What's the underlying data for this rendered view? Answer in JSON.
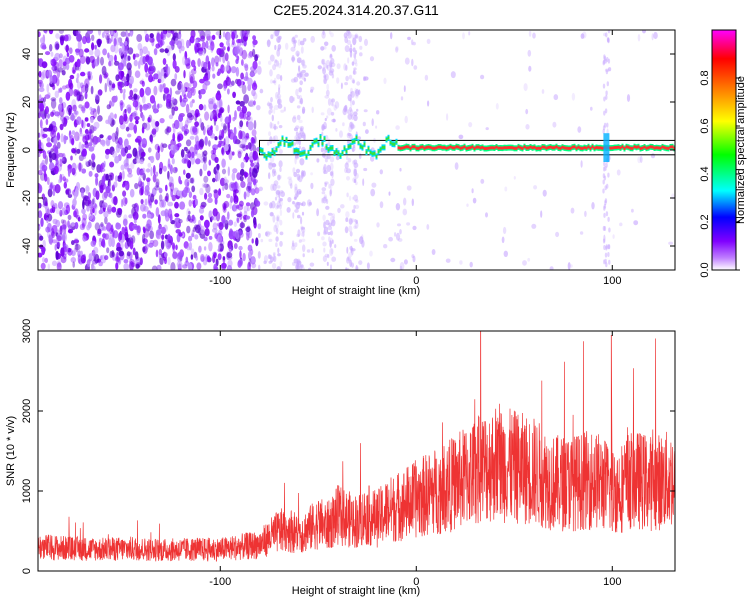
{
  "title": "C2E5.2024.314.20.37.G11",
  "chart_data": [
    {
      "type": "heatmap",
      "xlabel": "Height of straight line (km)",
      "ylabel": "Frequency (Hz)",
      "xlim": [
        -193,
        132
      ],
      "ylim": [
        -50,
        50
      ],
      "xticks": [
        -100,
        0,
        100
      ],
      "yticks": [
        40,
        20,
        0,
        -20,
        -40
      ],
      "grid": false,
      "colorbar": {
        "label": "Normalized spectral amplitude",
        "range": [
          0,
          1
        ],
        "ticks": [
          "0.0",
          "0.2",
          "0.4",
          "0.6",
          "0.8"
        ],
        "colors": [
          "#ffffff",
          "#8000ff",
          "#0000ff",
          "#00ffff",
          "#00ff00",
          "#ffff00",
          "#ff8000",
          "#ff0000",
          "#ff00ff"
        ]
      },
      "signal": {
        "description": "narrow band centered near 0 Hz",
        "x_start": -80,
        "x_end": 132,
        "freq_center": 1,
        "freq_halfwidth": 3
      },
      "noise_region": {
        "x_start": -193,
        "x_end": -80
      },
      "artifact_x": 97
    },
    {
      "type": "line",
      "xlabel": "Height of straight line (km)",
      "ylabel": "SNR (10 * v/v)",
      "xlim": [
        -193,
        132
      ],
      "ylim": [
        0,
        3000
      ],
      "xticks": [
        -100,
        0,
        100
      ],
      "yticks": [
        0,
        1000,
        2000,
        3000
      ],
      "color": "#ee3333",
      "grid": false,
      "series": [
        {
          "x": [
            -190,
            -175,
            -160,
            -145,
            -130,
            -115,
            -100,
            -90,
            -80,
            -75,
            -70,
            -65,
            -60,
            -55,
            -50,
            -45,
            -40,
            -35,
            -30,
            -25,
            -20,
            -15,
            -10,
            -5,
            0,
            10,
            20,
            30,
            40,
            50,
            60,
            70,
            80,
            90,
            95,
            100,
            105,
            110,
            120,
            132
          ],
          "values": [
            300,
            280,
            270,
            280,
            260,
            270,
            270,
            300,
            330,
            420,
            500,
            520,
            460,
            520,
            600,
            560,
            700,
            650,
            620,
            700,
            650,
            750,
            800,
            850,
            900,
            1000,
            1100,
            1250,
            1350,
            1300,
            1250,
            1100,
            1100,
            1150,
            1100,
            1000,
            1050,
            1150,
            1100,
            1150
          ]
        }
      ]
    }
  ]
}
